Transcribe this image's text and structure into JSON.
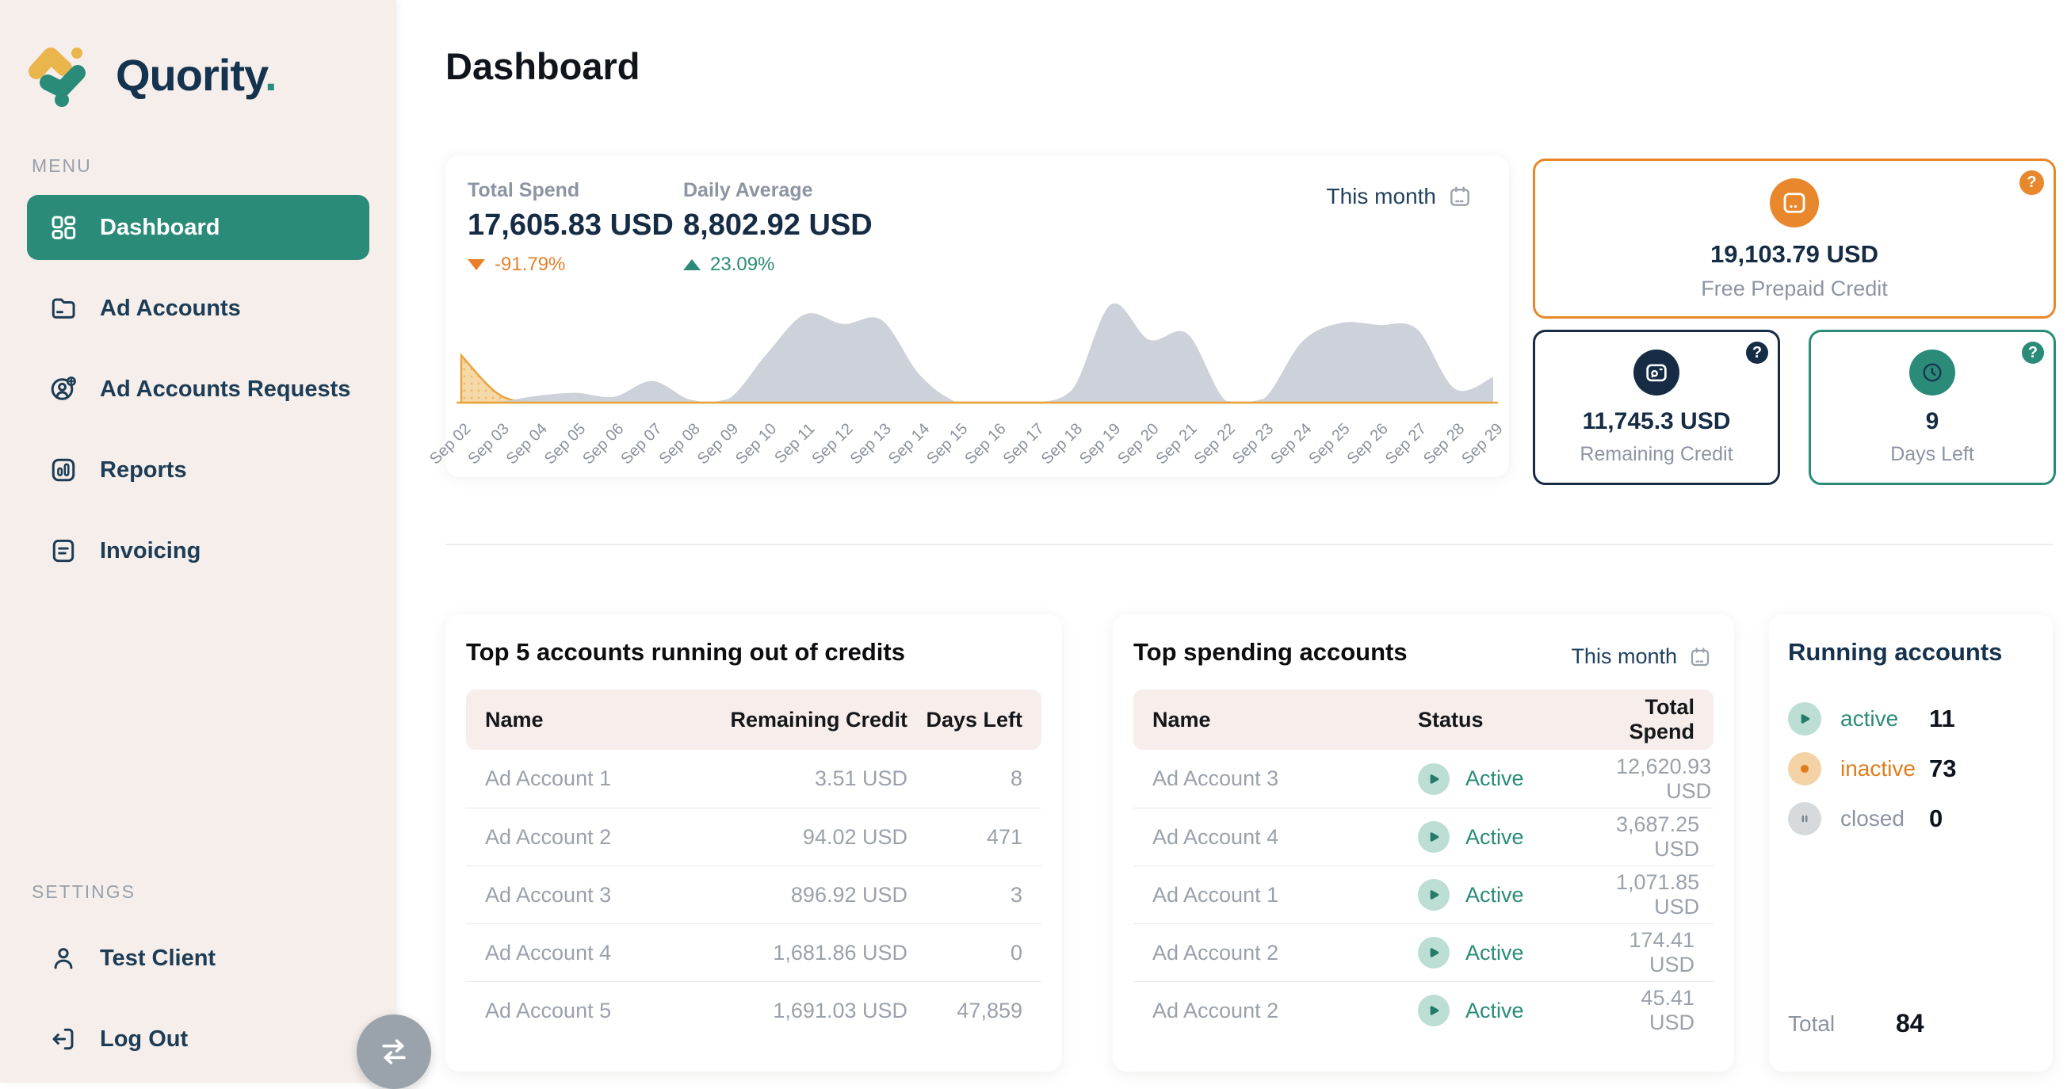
{
  "brand": {
    "name": "Quority",
    "dot": "."
  },
  "sidebar": {
    "menu_label": "MENU",
    "items": [
      {
        "label": "Dashboard",
        "icon": "dashboard-grid-icon",
        "active": true
      },
      {
        "label": "Ad Accounts",
        "icon": "folder-icon",
        "active": false
      },
      {
        "label": "Ad Accounts Requests",
        "icon": "user-add-icon",
        "active": false
      },
      {
        "label": "Reports",
        "icon": "bar-report-icon",
        "active": false
      },
      {
        "label": "Invoicing",
        "icon": "invoice-icon",
        "active": false
      }
    ],
    "settings_label": "SETTINGS",
    "settings_items": [
      {
        "label": "Test Client",
        "icon": "user-icon"
      },
      {
        "label": "Log Out",
        "icon": "logout-icon"
      }
    ]
  },
  "header": {
    "title": "Dashboard"
  },
  "spend_overview": {
    "total_spend": {
      "label": "Total Spend",
      "value": "17,605.83 USD",
      "delta": "-91.79%",
      "direction": "down"
    },
    "daily_average": {
      "label": "Daily Average",
      "value": "8,802.92 USD",
      "delta": "23.09%",
      "direction": "up"
    },
    "period_label": "This month"
  },
  "credit_cards": {
    "help_badge": "?",
    "free_prepaid": {
      "value": "19,103.79 USD",
      "label": "Free Prepaid Credit",
      "accent": "#e8872b",
      "icon": "credit-card-icon"
    },
    "remaining": {
      "value": "11,745.3 USD",
      "label": "Remaining Credit",
      "accent": "#152c44",
      "icon": "wallet-icon"
    },
    "days_left": {
      "value": "9",
      "label": "Days Left",
      "accent": "#2a8b78",
      "icon": "clock-icon"
    }
  },
  "chart_data": {
    "type": "area",
    "x": [
      "Sep 02",
      "Sep 03",
      "Sep 04",
      "Sep 05",
      "Sep 06",
      "Sep 07",
      "Sep 08",
      "Sep 09",
      "Sep 10",
      "Sep 11",
      "Sep 12",
      "Sep 13",
      "Sep 14",
      "Sep 15",
      "Sep 16",
      "Sep 17",
      "Sep 18",
      "Sep 19",
      "Sep 20",
      "Sep 21",
      "Sep 22",
      "Sep 23",
      "Sep 24",
      "Sep 25",
      "Sep 26",
      "Sep 27",
      "Sep 28",
      "Sep 29"
    ],
    "series": [
      {
        "name": "daily spend (gray area)",
        "color": "#c9cdd6",
        "values": [
          0,
          1,
          7,
          10,
          6,
          22,
          3,
          4,
          50,
          90,
          80,
          84,
          28,
          0,
          0,
          0,
          14,
          100,
          64,
          70,
          2,
          4,
          62,
          81,
          79,
          75,
          14,
          26
        ]
      },
      {
        "name": "highlighted spend (orange dotted area)",
        "color": "#e9a43e",
        "fill": "#f6d9a8",
        "values": [
          48,
          8,
          0,
          0,
          0,
          0,
          0,
          0,
          0,
          0,
          0,
          0,
          0,
          0,
          0,
          0,
          0,
          0,
          0,
          0,
          0,
          0,
          0,
          0,
          0,
          0,
          0,
          0
        ]
      }
    ],
    "ylim": [
      0,
      100
    ],
    "unit": "relative daily spend (chart shows no y-axis)",
    "grid": false,
    "legend": false,
    "baseline_color": "#e9a43e",
    "label_color": "#8b919c",
    "title": "",
    "xlabel": "",
    "ylabel": ""
  },
  "top5": {
    "title": "Top 5 accounts running out of credits",
    "columns": [
      "Name",
      "Remaining Credit",
      "Days Left"
    ],
    "rows": [
      {
        "name": "Ad Account 1",
        "credit": "3.51 USD",
        "days": "8"
      },
      {
        "name": "Ad Account 2",
        "credit": "94.02 USD",
        "days": "471"
      },
      {
        "name": "Ad Account 3",
        "credit": "896.92 USD",
        "days": "3"
      },
      {
        "name": "Ad Account 4",
        "credit": "1,681.86 USD",
        "days": "0"
      },
      {
        "name": "Ad Account 5",
        "credit": "1,691.03 USD",
        "days": "47,859"
      }
    ]
  },
  "top_spending": {
    "title": "Top spending accounts",
    "period_label": "This month",
    "columns": [
      "Name",
      "Status",
      "Total Spend"
    ],
    "rows": [
      {
        "name": "Ad Account 3",
        "status": "Active",
        "amount": "12,620.93 USD"
      },
      {
        "name": "Ad Account 4",
        "status": "Active",
        "amount": "3,687.25 USD"
      },
      {
        "name": "Ad Account 1",
        "status": "Active",
        "amount": "1,071.85 USD"
      },
      {
        "name": "Ad Account 2",
        "status": "Active",
        "amount": "174.41 USD"
      },
      {
        "name": "Ad Account 2",
        "status": "Active",
        "amount": "45.41 USD"
      }
    ]
  },
  "running_accounts": {
    "title": "Running accounts",
    "rows": [
      {
        "label": "active",
        "count": "11",
        "state": "active"
      },
      {
        "label": "inactive",
        "count": "73",
        "state": "inactive"
      },
      {
        "label": "closed",
        "count": "0",
        "state": "closed"
      }
    ],
    "total_label": "Total",
    "total_value": "84"
  },
  "colors": {
    "sidebar_bg": "#f5eeeb",
    "active_menu": "#2a8b79",
    "navy": "#152c44",
    "teal": "#2a8b78",
    "orange": "#e8872b",
    "gray_text": "#9ba1ab",
    "table_header_bg": "#f7eeec",
    "chart_gray": "#c9cdd6",
    "chart_orange": "#e9a43e"
  }
}
